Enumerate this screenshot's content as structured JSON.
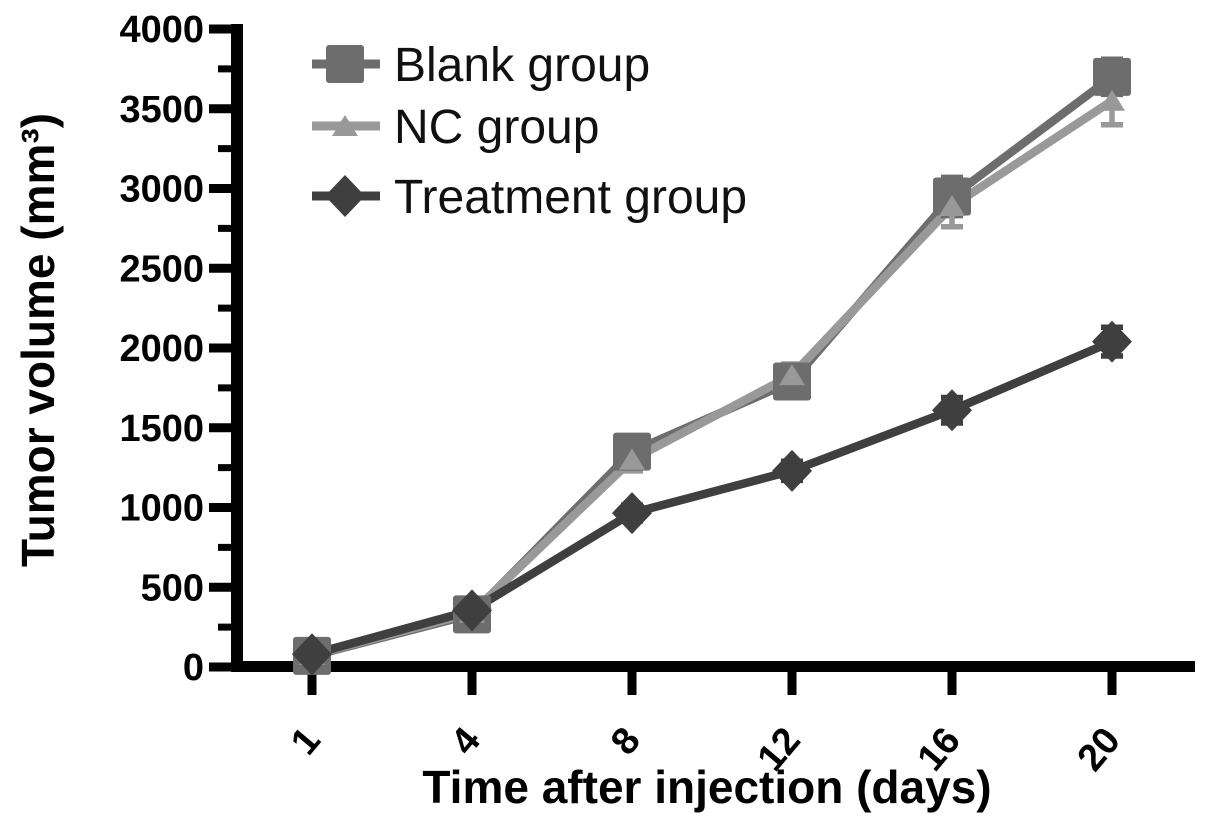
{
  "chart_data": {
    "type": "line",
    "title": "",
    "xlabel": "Time after injection (days)",
    "ylabel": "Tumor volume (mm³)",
    "x": [
      1,
      4,
      8,
      12,
      16,
      20
    ],
    "xtick_labels": [
      "1",
      "4",
      "8",
      "12",
      "16",
      "20"
    ],
    "ylim": [
      0,
      4000
    ],
    "yticks": [
      0,
      500,
      1000,
      1500,
      2000,
      2500,
      3000,
      3500,
      4000
    ],
    "yminor_step": 250,
    "grid": false,
    "legend_position": "top-left-inside",
    "axis_color": "#010101",
    "background_color": "#ffffff",
    "series": [
      {
        "name": "Blank group",
        "marker": "square",
        "color": "#6d6d6d",
        "values": [
          70,
          330,
          1350,
          1790,
          2950,
          3700
        ],
        "errors": [
          25,
          30,
          70,
          90,
          120,
          110
        ]
      },
      {
        "name": "NC group",
        "marker": "triangle",
        "color": "#999999",
        "values": [
          75,
          340,
          1300,
          1830,
          2890,
          3550
        ],
        "errors": [
          25,
          30,
          70,
          70,
          130,
          150
        ]
      },
      {
        "name": "Treatment group",
        "marker": "diamond",
        "color": "#3f3f3f",
        "values": [
          80,
          355,
          965,
          1230,
          1610,
          2040
        ],
        "errors": [
          25,
          30,
          50,
          60,
          80,
          90
        ]
      }
    ]
  }
}
